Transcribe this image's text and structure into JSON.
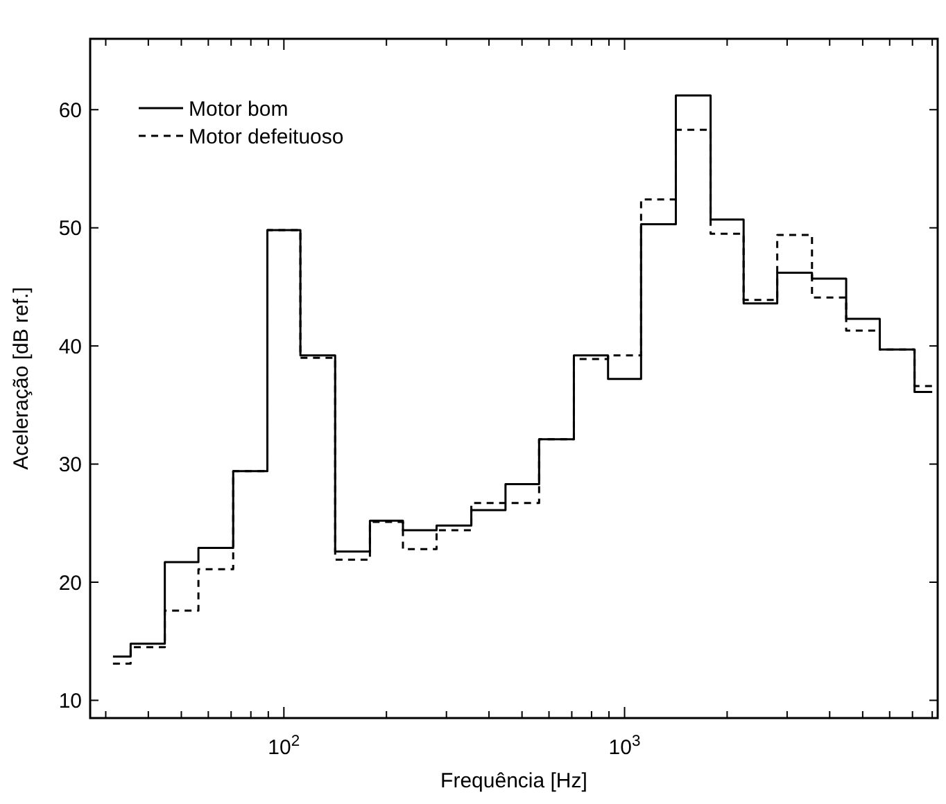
{
  "chart_data": {
    "type": "step",
    "xlabel": "Frequência [Hz]",
    "ylabel": "Aceleração [dB ref.]",
    "log": "x",
    "grid": false,
    "legend": "top left",
    "x": [
      31.5,
      40,
      50,
      63,
      80,
      100,
      125,
      160,
      200,
      250,
      315,
      400,
      500,
      630,
      800,
      1000,
      1250,
      1600,
      2000,
      2500,
      3150,
      4000,
      5000,
      6300,
      8000
    ],
    "xlim": [
      27,
      8300
    ],
    "xticks": [
      {
        "value": 30,
        "label": null
      },
      {
        "value": 40,
        "label": null
      },
      {
        "value": 50,
        "label": null
      },
      {
        "value": 60,
        "label": null
      },
      {
        "value": 70,
        "label": null
      },
      {
        "value": 80,
        "label": null
      },
      {
        "value": 90,
        "label": null
      },
      {
        "value": 100,
        "label": "10$^{2}$"
      },
      {
        "value": 200,
        "label": null
      },
      {
        "value": 300,
        "label": null
      },
      {
        "value": 400,
        "label": null
      },
      {
        "value": 500,
        "label": null
      },
      {
        "value": 600,
        "label": null
      },
      {
        "value": 700,
        "label": null
      },
      {
        "value": 800,
        "label": null
      },
      {
        "value": 900,
        "label": null
      },
      {
        "value": 1000,
        "label": "10$^{3}$"
      },
      {
        "value": 2000,
        "label": null
      },
      {
        "value": 3000,
        "label": null
      },
      {
        "value": 4000,
        "label": null
      },
      {
        "value": 5000,
        "label": null
      },
      {
        "value": 6000,
        "label": null
      },
      {
        "value": 7000,
        "label": null
      },
      {
        "value": 8000,
        "label": null
      }
    ],
    "ylim": [
      8.5,
      66
    ],
    "yticks": [
      10,
      20,
      30,
      40,
      50,
      60
    ],
    "series": [
      {
        "name": "Motor bom",
        "color": "#000000",
        "line_style": "solid",
        "values": [
          13.7,
          14.8,
          21.7,
          22.9,
          29.4,
          49.8,
          39.2,
          22.6,
          25.2,
          24.4,
          24.8,
          26.1,
          28.3,
          32.1,
          39.2,
          37.2,
          50.3,
          61.2,
          50.7,
          43.6,
          46.2,
          45.7,
          42.3,
          39.7,
          36.1
        ]
      },
      {
        "name": "Motor defeituoso",
        "color": "#000000",
        "line_style": "dashed",
        "values": [
          13.1,
          14.5,
          17.6,
          21.1,
          29.4,
          49.8,
          39.0,
          21.9,
          25.1,
          22.8,
          24.4,
          26.7,
          26.7,
          32.1,
          38.9,
          39.2,
          52.4,
          58.3,
          49.5,
          43.9,
          49.4,
          44.1,
          41.3,
          39.7,
          36.6
        ]
      }
    ]
  }
}
